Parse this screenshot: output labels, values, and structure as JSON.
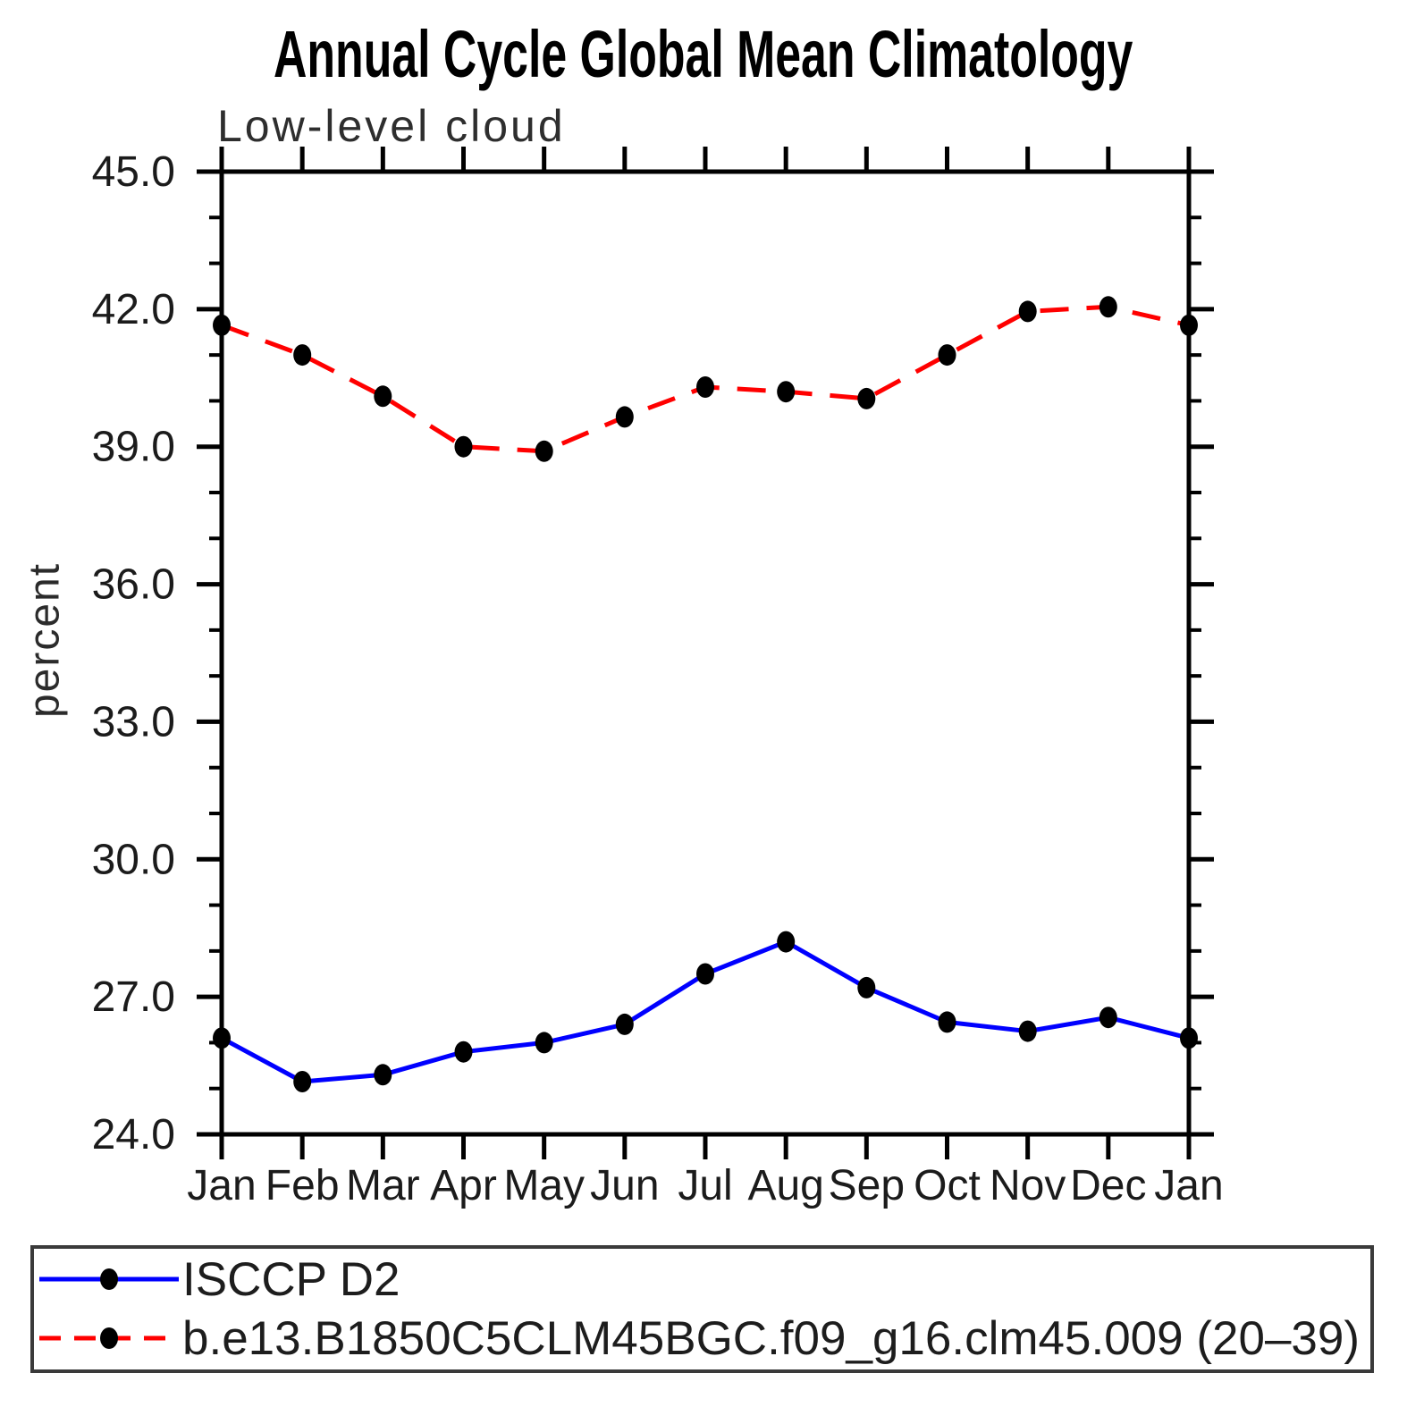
{
  "title": "Annual Cycle Global Mean Climatology",
  "subtitle": "Low-level cloud",
  "ylabel": "percent",
  "legend": {
    "position": "bottom",
    "items": [
      {
        "label": "ISCCP D2",
        "color": "#0000ff",
        "style": "solid"
      },
      {
        "label": "b.e13.B1850C5CLM45BGC.f09_g16.clm45.009 (20–39)",
        "color": "#ff0000",
        "style": "dashed"
      }
    ]
  },
  "chart_data": {
    "type": "line",
    "title": "Annual Cycle Global Mean Climatology",
    "subtitle": "Low-level cloud",
    "xlabel": "",
    "ylabel": "percent",
    "categories": [
      "Jan",
      "Feb",
      "Mar",
      "Apr",
      "May",
      "Jun",
      "Jul",
      "Aug",
      "Sep",
      "Oct",
      "Nov",
      "Dec",
      "Jan"
    ],
    "series": [
      {
        "name": "ISCCP D2",
        "color": "#0000ff",
        "line_style": "solid",
        "marker": "filled-circle",
        "marker_color": "#000000",
        "values": [
          26.1,
          25.15,
          25.3,
          25.8,
          26.0,
          26.4,
          27.5,
          28.2,
          27.2,
          26.45,
          26.25,
          26.55,
          26.1
        ]
      },
      {
        "name": "b.e13.B1850C5CLM45BGC.f09_g16.clm45.009 (20–39)",
        "color": "#ff0000",
        "line_style": "dashed",
        "marker": "filled-circle",
        "marker_color": "#000000",
        "values": [
          41.65,
          41.0,
          40.1,
          39.0,
          38.9,
          39.65,
          40.3,
          40.2,
          40.05,
          41.0,
          41.95,
          42.05,
          41.65
        ]
      }
    ],
    "ylim": [
      24.0,
      45.0
    ],
    "y_major_ticks": [
      45,
      42,
      39,
      36,
      33,
      30,
      27,
      24
    ],
    "y_tick_labels": [
      "45.0",
      "42.0",
      "39.0",
      "36.0",
      "33.0",
      "30.0",
      "27.0",
      "24.0"
    ],
    "y_minor_step": 1.0,
    "grid": false,
    "legend_position": "bottom",
    "axis_color": "#000000",
    "tick_label_color": "#1b1b1b"
  }
}
